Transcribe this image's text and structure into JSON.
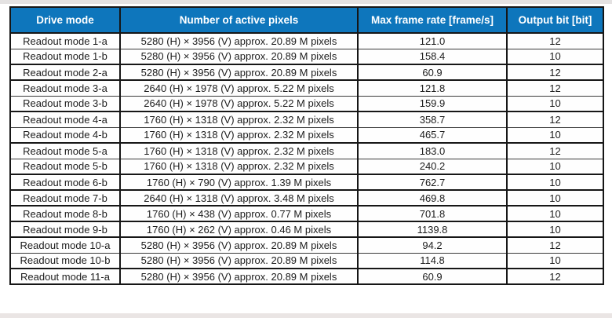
{
  "colors": {
    "header_bg": "#0e76bc",
    "header_text": "#ffffff",
    "border": "#161616",
    "body_text": "#1c1c1c",
    "row_bg": "#fefefe"
  },
  "table": {
    "headers": [
      "Drive mode",
      "Number of active pixels",
      "Max frame rate [frame/s]",
      "Output bit [bit]"
    ],
    "rows": [
      {
        "drive_mode": "Readout mode 1-a",
        "active_pixels": "5280 (H) × 3956 (V) approx. 20.89 M pixels",
        "max_frame_rate": "121.0",
        "output_bit": "12",
        "section_start": false
      },
      {
        "drive_mode": "Readout mode 1-b",
        "active_pixels": "5280 (H) × 3956 (V) approx. 20.89 M pixels",
        "max_frame_rate": "158.4",
        "output_bit": "10",
        "section_start": false
      },
      {
        "drive_mode": "Readout mode 2-a",
        "active_pixels": "5280 (H) × 3956 (V) approx. 20.89 M pixels",
        "max_frame_rate": "60.9",
        "output_bit": "12",
        "section_start": true
      },
      {
        "drive_mode": "Readout mode 3-a",
        "active_pixels": "2640 (H) × 1978 (V) approx. 5.22 M pixels",
        "max_frame_rate": "121.8",
        "output_bit": "12",
        "section_start": true
      },
      {
        "drive_mode": "Readout mode 3-b",
        "active_pixels": "2640 (H) × 1978 (V) approx. 5.22 M pixels",
        "max_frame_rate": "159.9",
        "output_bit": "10",
        "section_start": false
      },
      {
        "drive_mode": "Readout mode 4-a",
        "active_pixels": "1760 (H) × 1318 (V) approx. 2.32 M pixels",
        "max_frame_rate": "358.7",
        "output_bit": "12",
        "section_start": true
      },
      {
        "drive_mode": "Readout mode 4-b",
        "active_pixels": "1760 (H) × 1318 (V) approx. 2.32 M pixels",
        "max_frame_rate": "465.7",
        "output_bit": "10",
        "section_start": false
      },
      {
        "drive_mode": "Readout mode 5-a",
        "active_pixels": "1760 (H) × 1318 (V) approx. 2.32 M pixels",
        "max_frame_rate": "183.0",
        "output_bit": "12",
        "section_start": true
      },
      {
        "drive_mode": "Readout mode 5-b",
        "active_pixels": "1760 (H) × 1318 (V) approx. 2.32 M pixels",
        "max_frame_rate": "240.2",
        "output_bit": "10",
        "section_start": false
      },
      {
        "drive_mode": "Readout mode 6-b",
        "active_pixels": "1760 (H) × 790 (V) approx. 1.39 M pixels",
        "max_frame_rate": "762.7",
        "output_bit": "10",
        "section_start": true
      },
      {
        "drive_mode": "Readout mode 7-b",
        "active_pixels": "2640 (H) × 1318 (V) approx. 3.48 M pixels",
        "max_frame_rate": "469.8",
        "output_bit": "10",
        "section_start": true
      },
      {
        "drive_mode": "Readout mode 8-b",
        "active_pixels": "1760 (H) × 438 (V) approx. 0.77 M pixels",
        "max_frame_rate": "701.8",
        "output_bit": "10",
        "section_start": true
      },
      {
        "drive_mode": "Readout mode 9-b",
        "active_pixels": "1760 (H) × 262 (V) approx. 0.46 M pixels",
        "max_frame_rate": "1139.8",
        "output_bit": "10",
        "section_start": true
      },
      {
        "drive_mode": "Readout mode 10-a",
        "active_pixels": "5280 (H) × 3956 (V) approx. 20.89 M pixels",
        "max_frame_rate": "94.2",
        "output_bit": "12",
        "section_start": true
      },
      {
        "drive_mode": "Readout mode 10-b",
        "active_pixels": "5280 (H) × 3956 (V) approx. 20.89 M pixels",
        "max_frame_rate": "114.8",
        "output_bit": "10",
        "section_start": false
      },
      {
        "drive_mode": "Readout mode 11-a",
        "active_pixels": "5280 (H) × 3956 (V) approx. 20.89 M pixels",
        "max_frame_rate": "60.9",
        "output_bit": "12",
        "section_start": true
      }
    ]
  }
}
